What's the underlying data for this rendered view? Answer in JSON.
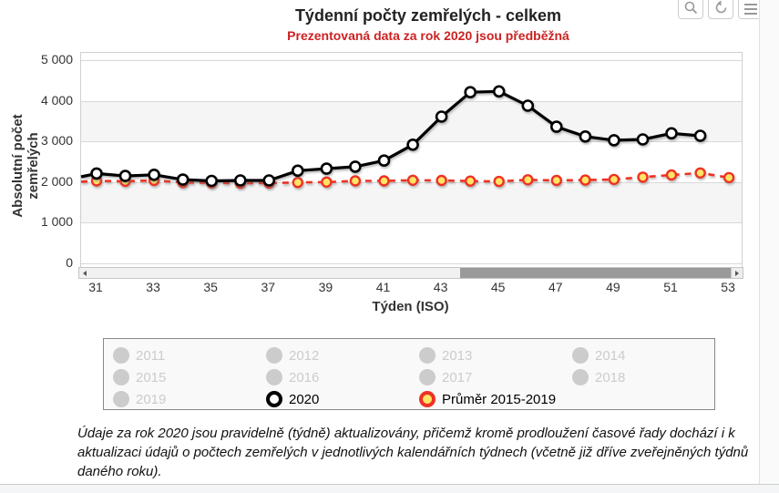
{
  "chart": {
    "title": "Týdenní počty zemřelých - celkem",
    "subtitle": "Prezentovaná data za rok 2020 jsou předběžná",
    "subtitle_color": "#cc2222",
    "y_axis_title": "Absolutní počet zemřelých",
    "x_axis_title": "Týden (ISO)"
  },
  "chart_data": {
    "type": "line",
    "title": "Týdenní počty zemřelých - celkem",
    "subtitle": "Prezentovaná data za rok 2020 jsou předběžná",
    "xlabel": "Týden (ISO)",
    "ylabel": "Absolutní počet zemřelých",
    "xlim": [
      30.45,
      53.45
    ],
    "ylim": [
      0,
      5000
    ],
    "x_ticks": [
      31,
      33,
      35,
      37,
      39,
      41,
      43,
      45,
      47,
      49,
      51,
      53
    ],
    "y_ticks": [
      0,
      1000,
      2000,
      3000,
      4000,
      5000
    ],
    "y_tick_labels": [
      "0",
      "1 000",
      "2 000",
      "3 000",
      "4 000",
      "5 000"
    ],
    "grid": true,
    "alternate_band_color": "#f5f5f5",
    "gridline_color": "#d8d8d8",
    "legend_position": "bottom",
    "series": [
      {
        "name": "Průměr 2015-2019",
        "line_color": "#ee3224",
        "marker_fill": "#ffe566",
        "dash": "dashed",
        "left_edge_value": 2010,
        "weeks": [
          31,
          32,
          33,
          34,
          35,
          36,
          37,
          38,
          39,
          40,
          41,
          42,
          43,
          44,
          45,
          46,
          47,
          48,
          49,
          50,
          51,
          52,
          53
        ],
        "values": [
          2030,
          2020,
          2040,
          1990,
          1980,
          1970,
          1975,
          1990,
          2000,
          2030,
          2030,
          2045,
          2040,
          2025,
          2015,
          2055,
          2040,
          2050,
          2065,
          2120,
          2175,
          2225,
          2110
        ]
      },
      {
        "name": "2020",
        "line_color": "#000000",
        "marker_fill": "#ffffff",
        "dash": "solid",
        "left_edge_value": 2130,
        "weeks": [
          31,
          32,
          33,
          34,
          35,
          36,
          37,
          38,
          39,
          40,
          41,
          42,
          43,
          44,
          45,
          46,
          47,
          48,
          49,
          50,
          51,
          52
        ],
        "values": [
          2210,
          2150,
          2180,
          2060,
          2030,
          2040,
          2040,
          2280,
          2330,
          2380,
          2530,
          2920,
          3610,
          4210,
          4230,
          3880,
          3360,
          3120,
          3030,
          3050,
          3200,
          3140
        ]
      }
    ]
  },
  "toolbar": {
    "icons": [
      "magnifier-icon",
      "reset-zoom-icon",
      "menu-icon"
    ]
  },
  "scrollbar": {
    "icons": [
      "left-arrow-icon",
      "right-arrow-icon"
    ]
  },
  "legend": {
    "items": [
      {
        "label": "2011",
        "style": "disabled"
      },
      {
        "label": "2012",
        "style": "disabled"
      },
      {
        "label": "2013",
        "style": "disabled"
      },
      {
        "label": "2014",
        "style": "disabled"
      },
      {
        "label": "2015",
        "style": "disabled"
      },
      {
        "label": "2016",
        "style": "disabled"
      },
      {
        "label": "2017",
        "style": "disabled"
      },
      {
        "label": "2018",
        "style": "disabled"
      },
      {
        "label": "2019",
        "style": "disabled"
      },
      {
        "label": "2020",
        "style": "ring-black"
      },
      {
        "label": "Průměr 2015-2019",
        "style": "ring-red-yellow"
      }
    ]
  },
  "footer_note": "Údaje za rok 2020 jsou pravidelně (týdně) aktualizovány, přičemž kromě prodloužení časové řady dochází i k aktualizaci údajů o počtech zemřelých v jednotlivých kalendářních týdnech (včetně již dříve zveřejněných týdnů daného roku)."
}
